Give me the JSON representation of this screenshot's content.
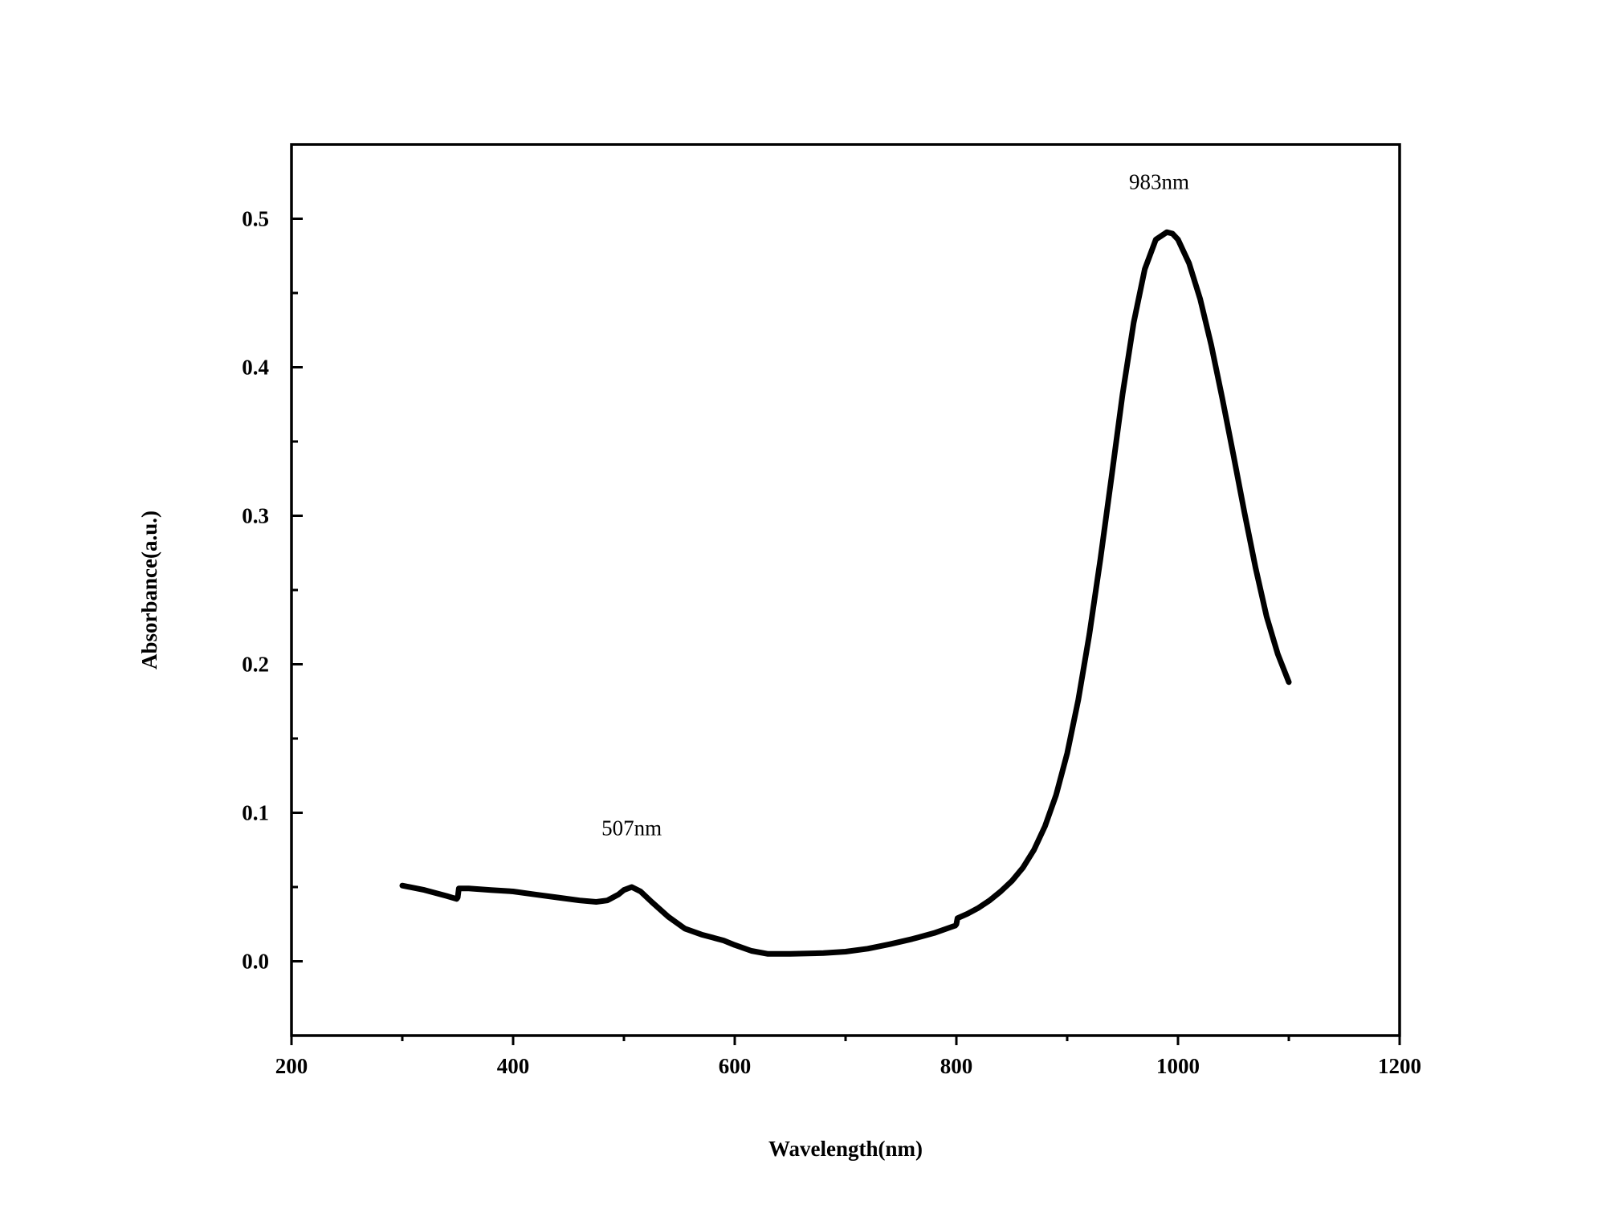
{
  "chart_data": {
    "type": "line",
    "title": "",
    "xlabel": "Wavelength(nm)",
    "ylabel": "Absorbance(a.u.)",
    "xlim": [
      200,
      1200
    ],
    "ylim": [
      -0.05,
      0.55
    ],
    "grid": false,
    "legend": "none",
    "x_ticks": [
      200,
      400,
      600,
      800,
      1000,
      1200
    ],
    "x_tick_labels": [
      "200",
      "400",
      "600",
      "800",
      "1000",
      "1200"
    ],
    "x_minor_ticks": [
      300,
      500,
      700,
      900,
      1100
    ],
    "y_ticks": [
      0.0,
      0.1,
      0.2,
      0.3,
      0.4,
      0.5
    ],
    "y_tick_labels": [
      "0.0",
      "0.1",
      "0.2",
      "0.3",
      "0.4",
      "0.5"
    ],
    "y_minor_ticks": [
      0.05,
      0.15,
      0.25,
      0.35,
      0.45
    ],
    "line_color": "#000000",
    "series": [
      {
        "x": [
          300,
          320,
          340,
          349,
          350,
          351,
          360,
          380,
          400,
          420,
          440,
          460,
          475,
          485,
          495,
          500,
          507,
          515,
          525,
          540,
          555,
          570,
          580,
          590,
          600,
          615,
          630,
          650,
          680,
          700,
          720,
          740,
          760,
          780,
          795,
          799,
          800,
          801,
          810,
          820,
          830,
          840,
          850,
          860,
          870,
          880,
          890,
          900,
          910,
          920,
          930,
          940,
          950,
          960,
          970,
          980,
          990,
          995,
          1000,
          1010,
          1020,
          1030,
          1040,
          1050,
          1060,
          1070,
          1080,
          1090,
          1100
        ],
        "y": [
          0.051,
          0.048,
          0.044,
          0.042,
          0.043,
          0.049,
          0.049,
          0.048,
          0.047,
          0.045,
          0.043,
          0.041,
          0.04,
          0.041,
          0.045,
          0.048,
          0.05,
          0.047,
          0.04,
          0.03,
          0.022,
          0.018,
          0.016,
          0.014,
          0.011,
          0.007,
          0.005,
          0.005,
          0.0055,
          0.0065,
          0.0085,
          0.0115,
          0.015,
          0.019,
          0.023,
          0.024,
          0.025,
          0.029,
          0.032,
          0.036,
          0.041,
          0.047,
          0.054,
          0.063,
          0.075,
          0.091,
          0.112,
          0.14,
          0.176,
          0.22,
          0.271,
          0.326,
          0.382,
          0.43,
          0.466,
          0.486,
          0.491,
          0.49,
          0.486,
          0.47,
          0.446,
          0.415,
          0.379,
          0.341,
          0.302,
          0.265,
          0.232,
          0.207,
          0.188
        ]
      }
    ],
    "annotations": [
      {
        "text": "507nm",
        "x": 507,
        "y": 0.085
      },
      {
        "text": "983nm",
        "x": 983,
        "y": 0.52
      }
    ]
  }
}
